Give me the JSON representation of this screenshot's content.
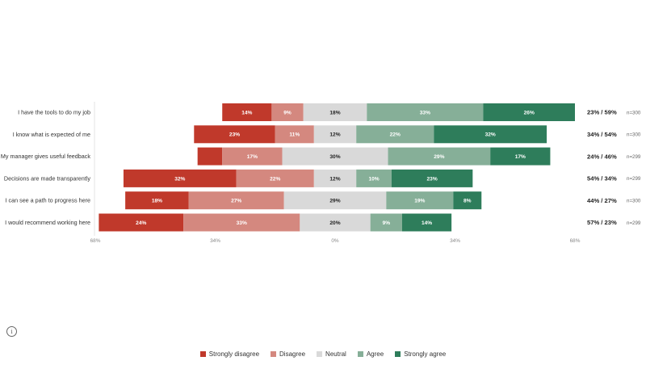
{
  "chart_data": {
    "type": "bar",
    "orientation": "horizontal-diverging",
    "categories": [
      "I have the tools to do my job",
      "I know what is expected of me",
      "My manager gives useful feedback",
      "Decisions are made transparently",
      "I can see a path to progress here",
      "I would recommend working here"
    ],
    "series": [
      {
        "name": "Strongly disagree",
        "color": "#c0392b",
        "values": [
          14,
          23,
          7,
          32,
          18,
          24
        ]
      },
      {
        "name": "Disagree",
        "color": "#d4887f",
        "values": [
          9,
          11,
          17,
          22,
          27,
          33
        ]
      },
      {
        "name": "Neutral",
        "color": "#d9d9d9",
        "values": [
          18,
          12,
          30,
          12,
          29,
          20
        ]
      },
      {
        "name": "Agree",
        "color": "#86af98",
        "values": [
          33,
          22,
          29,
          10,
          19,
          9
        ]
      },
      {
        "name": "Strongly agree",
        "color": "#2e7d5b",
        "values": [
          26,
          32,
          17,
          23,
          8,
          14
        ]
      }
    ],
    "summaries": [
      "23% / 59%",
      "34% / 54%",
      "24% / 46%",
      "54% / 34%",
      "44% / 27%",
      "57% / 23%"
    ],
    "n": [
      "n=300",
      "n=300",
      "n=299",
      "n=299",
      "n=300",
      "n=299"
    ],
    "xlim": [
      -68,
      68
    ],
    "ticks": [
      -68,
      -34,
      0,
      34,
      68
    ],
    "tick_labels": [
      "68%",
      "34%",
      "0%",
      "34%",
      "68%"
    ],
    "legend_position": "bottom"
  },
  "info_icon": "info-icon"
}
